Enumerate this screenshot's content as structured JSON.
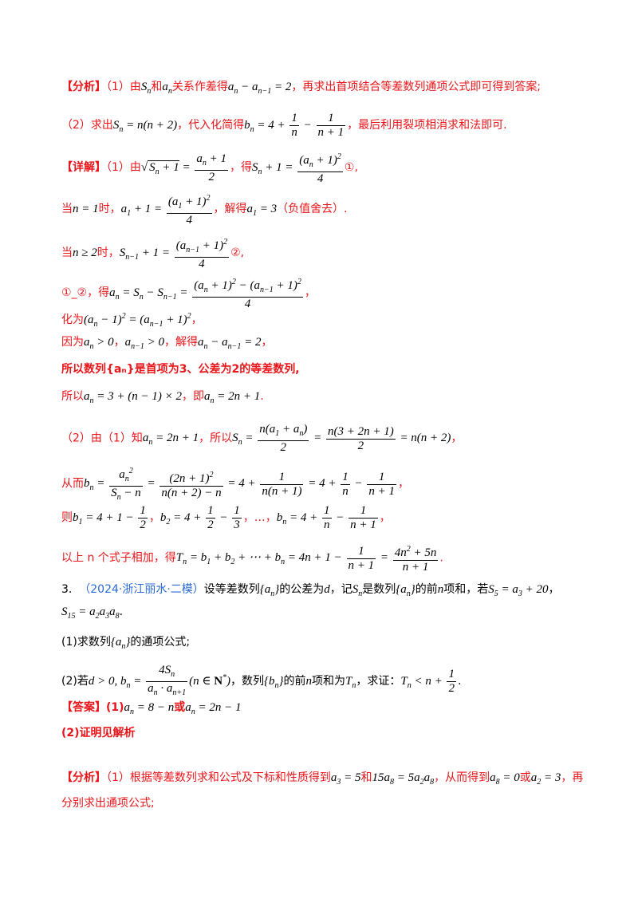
{
  "tags": {
    "analysis": "【分析】",
    "detail": "【详解】",
    "answer": "【答案】"
  },
  "analysis1": {
    "p1_a": "（1）由",
    "p1_b": "和",
    "p1_c": "关系作差得",
    "p1_d": "，再求出首项结合等差数列通项公式即可得到答案;",
    "p2_a": "（2）求出",
    "p2_b": "，代入化简得",
    "p2_c": "，最后利用裂项相消求和法即可."
  },
  "detail1": {
    "l1_a": "（1）由",
    "l1_b": "，得",
    "l1_c": "①,",
    "l2_a": "当",
    "l2_b": "时，",
    "l2_c": "，解得",
    "l2_d": "（负值舍去）.",
    "l3_a": "当",
    "l3_b": "时，",
    "l3_c": "②,",
    "l4_a": "①_②，得",
    "l4_b": "，",
    "l5_a": "化为",
    "l5_b": "，",
    "l6_a": "因为",
    "l6_b": "，",
    "l6_c": "，解得",
    "l6_d": "，",
    "l7": "所以数列{aₙ}是首项为3、公差为2的等差数列,",
    "l8_a": "所以",
    "l8_b": "，即",
    "l8_c": ".",
    "l9_a": "（2）由（1）知",
    "l9_b": "，所以",
    "l9_c": "，",
    "l10_a": "从而",
    "l10_b": "，",
    "l11_a": "则",
    "l11_b": "，",
    "l11_c": "，…，",
    "l11_d": "，",
    "l12_a": "以上 n 个式子相加，得",
    "l12_b": "."
  },
  "problem3": {
    "number": "3.",
    "source": "（2024·浙江丽水·二模）",
    "stem_a": "设等差数列",
    "stem_b": "的公差为",
    "stem_c": "，记",
    "stem_d": "是数列",
    "stem_e": "的前",
    "stem_f": "项和，若",
    "stem_g": "，",
    "q1_a": "(1)求数列",
    "q1_b": "的通项公式;",
    "q2_a": "(2)若",
    "q2_b": "，数列",
    "q2_c": "的前",
    "q2_d": "项和为",
    "q2_e": "，求证：",
    "ans1_a": "(1)",
    "ans1_b": "或",
    "ans2": "(2)证明见解析"
  },
  "analysis3": {
    "a": "（1）根据等差数列求和公式及下标和性质得到",
    "b": "和",
    "c": "，从而得到",
    "d": "或",
    "e": "，再",
    "f": "分别求出通项公式;"
  }
}
